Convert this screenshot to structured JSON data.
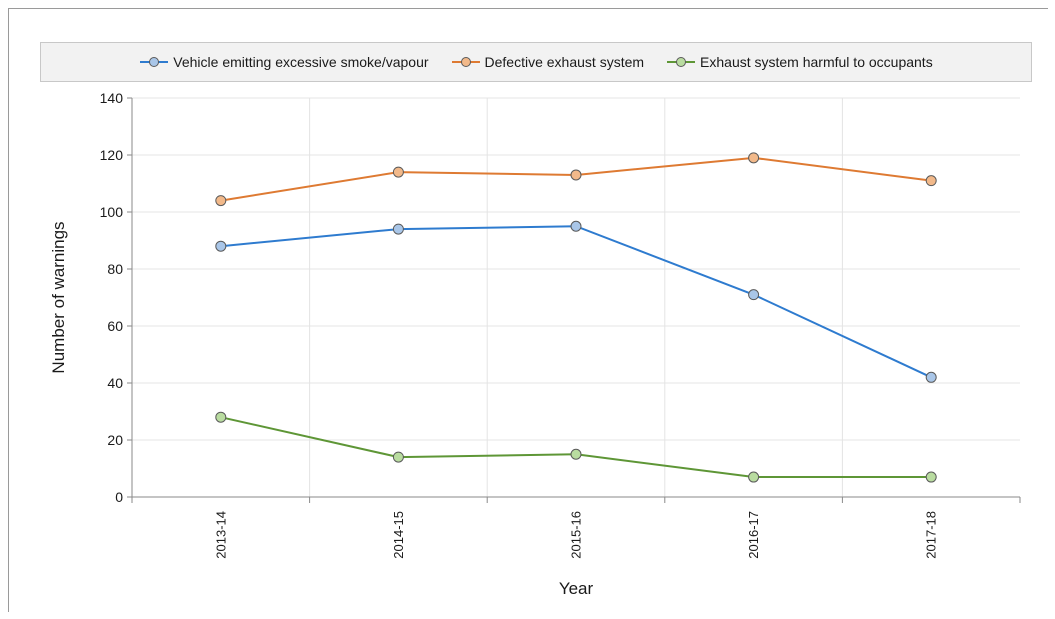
{
  "chart_data": {
    "type": "line",
    "categories": [
      "2013-14",
      "2014-15",
      "2015-16",
      "2016-17",
      "2017-18"
    ],
    "series": [
      {
        "name": "Vehicle emitting excessive smoke/vapour",
        "values": [
          88,
          94,
          95,
          71,
          42
        ],
        "color": "#2e7bcf",
        "marker_fill": "#a9c6e8"
      },
      {
        "name": "Defective exhaust system",
        "values": [
          104,
          114,
          113,
          119,
          111
        ],
        "color": "#de7a32",
        "marker_fill": "#f2b98a"
      },
      {
        "name": "Exhaust system harmful to occupants",
        "values": [
          28,
          14,
          15,
          7,
          7
        ],
        "color": "#5e9636",
        "marker_fill": "#b9dca0"
      }
    ],
    "xlabel": "Year",
    "ylabel": "Number of warnings",
    "ylim": [
      0,
      140
    ],
    "yticks": [
      0,
      20,
      40,
      60,
      80,
      100,
      120,
      140
    ],
    "grid": true,
    "legend_position": "top"
  }
}
